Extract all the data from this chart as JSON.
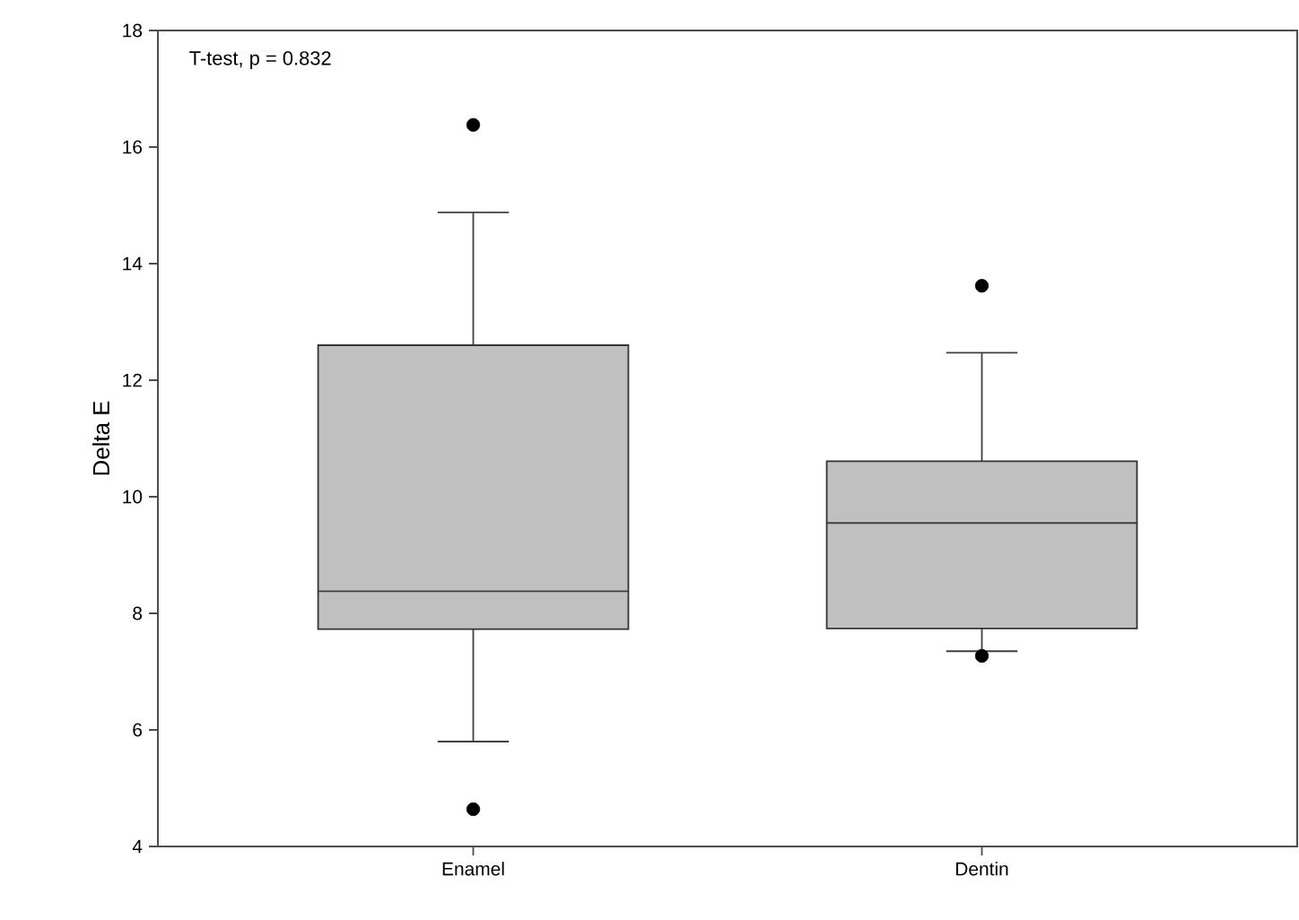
{
  "chart_data": {
    "type": "box",
    "ylabel": "Delta E",
    "categories": [
      "Enamel",
      "Dentin"
    ],
    "boxes": [
      {
        "low": 5.8,
        "q1": 7.73,
        "median": 8.38,
        "q3": 12.6,
        "high": 14.88,
        "outliers": [
          16.38,
          4.64
        ]
      },
      {
        "low": 7.35,
        "q1": 7.74,
        "median": 9.55,
        "q3": 10.61,
        "high": 12.47,
        "outliers": [
          13.62,
          7.27
        ]
      }
    ],
    "color": "#c0c0c0",
    "ylim": [
      4,
      18
    ],
    "yticks": [
      4,
      6,
      8,
      10,
      12,
      14,
      16,
      18
    ],
    "annotations": [
      "T-test, p = 0.832"
    ]
  }
}
